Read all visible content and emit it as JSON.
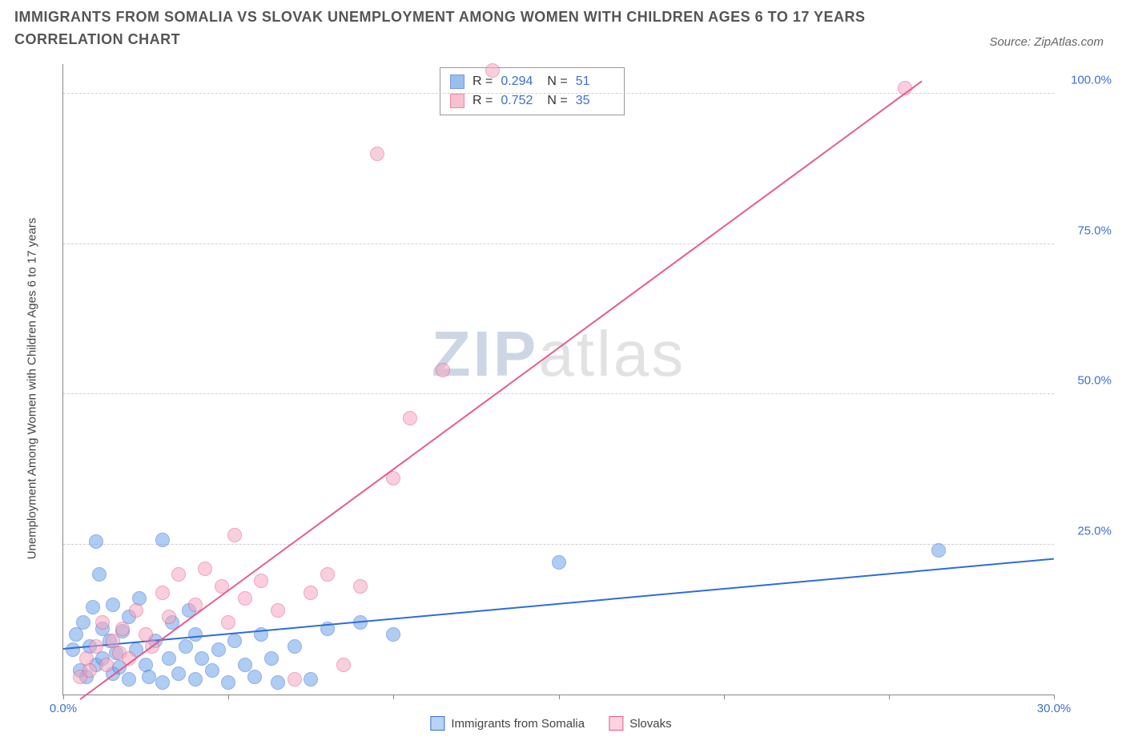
{
  "title": "IMMIGRANTS FROM SOMALIA VS SLOVAK UNEMPLOYMENT AMONG WOMEN WITH CHILDREN AGES 6 TO 17 YEARS CORRELATION CHART",
  "source": "Source: ZipAtlas.com",
  "watermark_a": "ZIP",
  "watermark_b": "atlas",
  "chart": {
    "type": "scatter",
    "ylabel": "Unemployment Among Women with Children Ages 6 to 17 years",
    "xlim": [
      0,
      30
    ],
    "ylim": [
      0,
      105
    ],
    "xticks": [
      0,
      5,
      10,
      15,
      20,
      25,
      30
    ],
    "xtick_labels": [
      "0.0%",
      "",
      "",
      "",
      "",
      "",
      "30.0%"
    ],
    "yticks": [
      25,
      50,
      75,
      100
    ],
    "ytick_labels": [
      "25.0%",
      "50.0%",
      "75.0%",
      "100.0%"
    ],
    "grid_color": "#d0d0d0",
    "background_color": "#ffffff",
    "axis_color": "#888888",
    "tick_label_color": "#3b6fd6",
    "point_radius": 9,
    "point_opacity": 0.55,
    "series": [
      {
        "name": "Immigrants from Somalia",
        "color": "#6ea5e8",
        "border": "#3b6fd6",
        "R": "0.294",
        "N": "51",
        "trend": {
          "x1": 0,
          "y1": 7.5,
          "x2": 30,
          "y2": 22.5,
          "color": "#2d6cdf",
          "width": 2
        },
        "points": [
          [
            0.3,
            7.5
          ],
          [
            0.4,
            10
          ],
          [
            0.5,
            4
          ],
          [
            0.6,
            12
          ],
          [
            0.7,
            3
          ],
          [
            0.8,
            8
          ],
          [
            0.9,
            14.5
          ],
          [
            1.0,
            5
          ],
          [
            1.0,
            25.5
          ],
          [
            1.1,
            20
          ],
          [
            1.2,
            6
          ],
          [
            1.2,
            11
          ],
          [
            1.4,
            9
          ],
          [
            1.5,
            3.5
          ],
          [
            1.5,
            15
          ],
          [
            1.6,
            7
          ],
          [
            1.7,
            4.5
          ],
          [
            1.8,
            10.5
          ],
          [
            2.0,
            2.5
          ],
          [
            2.0,
            13
          ],
          [
            2.2,
            7.5
          ],
          [
            2.3,
            16
          ],
          [
            2.5,
            5
          ],
          [
            2.6,
            3
          ],
          [
            2.8,
            9
          ],
          [
            3.0,
            2
          ],
          [
            3.0,
            25.8
          ],
          [
            3.2,
            6
          ],
          [
            3.3,
            12
          ],
          [
            3.5,
            3.5
          ],
          [
            3.7,
            8
          ],
          [
            3.8,
            14
          ],
          [
            4.0,
            2.5
          ],
          [
            4.0,
            10
          ],
          [
            4.2,
            6
          ],
          [
            4.5,
            4
          ],
          [
            4.7,
            7.5
          ],
          [
            5.0,
            2
          ],
          [
            5.2,
            9
          ],
          [
            5.5,
            5
          ],
          [
            5.8,
            3
          ],
          [
            6.0,
            10
          ],
          [
            6.3,
            6
          ],
          [
            6.5,
            2
          ],
          [
            7.0,
            8
          ],
          [
            7.5,
            2.5
          ],
          [
            8.0,
            11
          ],
          [
            9.0,
            12
          ],
          [
            10.0,
            10
          ],
          [
            15.0,
            22
          ],
          [
            26.5,
            24
          ]
        ]
      },
      {
        "name": "Slovaks",
        "color": "#f5a8c0",
        "border": "#e85a8a",
        "R": "0.752",
        "N": "35",
        "trend": {
          "x1": 0.5,
          "y1": -1,
          "x2": 26,
          "y2": 102,
          "color": "#e85a8a",
          "width": 2
        },
        "points": [
          [
            0.5,
            3
          ],
          [
            0.7,
            6
          ],
          [
            0.8,
            4
          ],
          [
            1.0,
            8
          ],
          [
            1.2,
            12
          ],
          [
            1.3,
            5
          ],
          [
            1.5,
            9
          ],
          [
            1.7,
            7
          ],
          [
            1.8,
            11
          ],
          [
            2.0,
            6
          ],
          [
            2.2,
            14
          ],
          [
            2.5,
            10
          ],
          [
            2.7,
            8
          ],
          [
            3.0,
            17
          ],
          [
            3.2,
            13
          ],
          [
            3.5,
            20
          ],
          [
            4.0,
            15
          ],
          [
            4.3,
            21
          ],
          [
            4.8,
            18
          ],
          [
            5.0,
            12
          ],
          [
            5.2,
            26.5
          ],
          [
            5.5,
            16
          ],
          [
            6.0,
            19
          ],
          [
            6.5,
            14
          ],
          [
            7.0,
            2.5
          ],
          [
            7.5,
            17
          ],
          [
            8.0,
            20
          ],
          [
            8.5,
            5
          ],
          [
            9.0,
            18
          ],
          [
            9.5,
            90
          ],
          [
            10.0,
            36
          ],
          [
            10.5,
            46
          ],
          [
            11.5,
            54
          ],
          [
            13.0,
            104
          ],
          [
            25.5,
            101
          ]
        ]
      }
    ],
    "bottom_legend": [
      {
        "label": "Immigrants from Somalia",
        "fill": "#b8d4f5",
        "border": "#3b6fd6"
      },
      {
        "label": "Slovaks",
        "fill": "#fbd4e1",
        "border": "#e85a8a"
      }
    ]
  }
}
